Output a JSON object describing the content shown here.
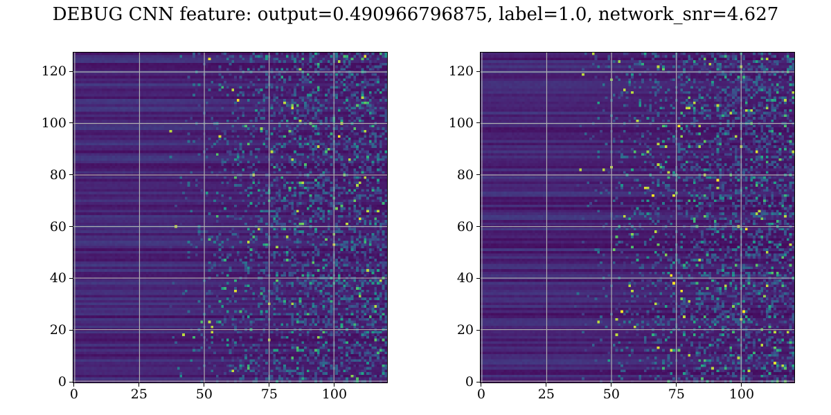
{
  "title": "DEBUG CNN feature: output=0.490966796875, label=1.0, network_snr=4.627",
  "chart_data": [
    {
      "type": "heatmap",
      "panel": "left",
      "colormap": "viridis",
      "rows": 128,
      "cols": 121,
      "xlim": [
        -0.5,
        120.5
      ],
      "ylim": [
        127.5,
        -0.5
      ],
      "x_ticks": [
        0,
        25,
        50,
        75,
        100
      ],
      "x_tick_labels": [
        "0",
        "25",
        "50",
        "75",
        "100"
      ],
      "y_ticks": [
        0,
        20,
        40,
        60,
        80,
        100,
        120
      ],
      "y_tick_labels": [
        "0",
        "20",
        "40",
        "60",
        "80",
        "100",
        "120"
      ],
      "grid": true,
      "value_range": [
        0,
        1
      ],
      "pattern": "low uniform horizontal bands for columns 0-40, rising to sparse bright random pixels beyond column 70"
    },
    {
      "type": "heatmap",
      "panel": "right",
      "colormap": "viridis",
      "rows": 128,
      "cols": 121,
      "xlim": [
        -0.5,
        120.5
      ],
      "ylim": [
        127.5,
        -0.5
      ],
      "x_ticks": [
        0,
        25,
        50,
        75,
        100
      ],
      "x_tick_labels": [
        "0",
        "25",
        "50",
        "75",
        "100"
      ],
      "y_ticks": [
        0,
        20,
        40,
        60,
        80,
        100,
        120
      ],
      "y_tick_labels": [
        "0",
        "20",
        "40",
        "60",
        "80",
        "100",
        "120"
      ],
      "grid": true,
      "value_range": [
        0,
        1
      ],
      "pattern": "low uniform horizontal bands for columns 0-40, rising to sparse bright random pixels beyond column 70"
    }
  ]
}
